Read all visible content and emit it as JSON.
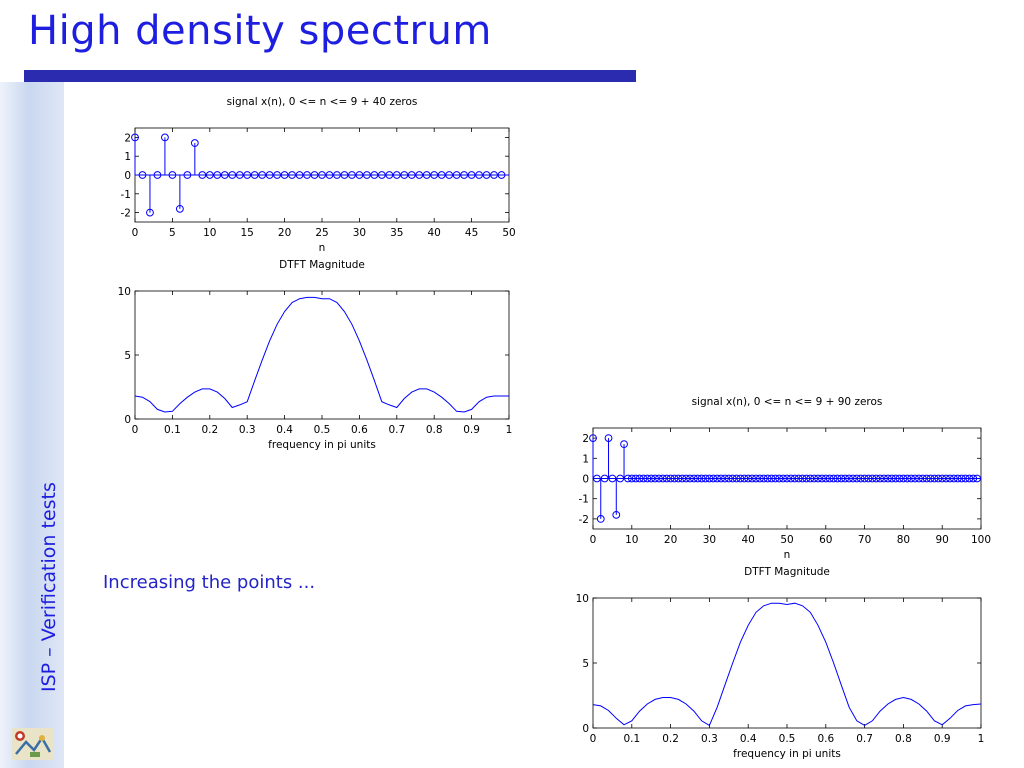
{
  "slide": {
    "title": "High density spectrum",
    "side_label": "ISP – Verification tests",
    "caption": "Increasing the points ...",
    "colors": {
      "title": "#1e1ee0",
      "rule": "#2b2bb0",
      "stem": "#0000ff",
      "sidebar": "#c9d7ef"
    }
  },
  "chart_data": [
    {
      "type": "stem",
      "title": "signal x(n), 0 <= n <= 9 + 40 zeros",
      "xlabel": "n",
      "ylabel": "",
      "xlim": [
        0,
        50
      ],
      "ylim": [
        -2.5,
        2.5
      ],
      "xticks": [
        0,
        5,
        10,
        15,
        20,
        25,
        30,
        35,
        40,
        45,
        50
      ],
      "yticks": [
        2,
        1,
        0,
        -1,
        -2
      ],
      "x": [
        0,
        1,
        2,
        3,
        4,
        5,
        6,
        7,
        8,
        9,
        10,
        11,
        12,
        13,
        14,
        15,
        16,
        17,
        18,
        19,
        20,
        21,
        22,
        23,
        24,
        25,
        26,
        27,
        28,
        29,
        30,
        31,
        32,
        33,
        34,
        35,
        36,
        37,
        38,
        39,
        40,
        41,
        42,
        43,
        44,
        45,
        46,
        47,
        48,
        49
      ],
      "y": [
        2,
        0,
        -2,
        0,
        2,
        0,
        -1.8,
        0,
        1.7,
        0,
        0,
        0,
        0,
        0,
        0,
        0,
        0,
        0,
        0,
        0,
        0,
        0,
        0,
        0,
        0,
        0,
        0,
        0,
        0,
        0,
        0,
        0,
        0,
        0,
        0,
        0,
        0,
        0,
        0,
        0,
        0,
        0,
        0,
        0,
        0,
        0,
        0,
        0,
        0,
        0
      ],
      "grid": false
    },
    {
      "type": "line",
      "title": "DTFT Magnitude",
      "xlabel": "frequency in pi units",
      "ylabel": "",
      "xlim": [
        0,
        1
      ],
      "ylim": [
        0,
        10
      ],
      "xticks": [
        0,
        0.1,
        0.2,
        0.3,
        0.4,
        0.5,
        0.6,
        0.7,
        0.8,
        0.9,
        1
      ],
      "yticks": [
        10,
        5,
        0
      ],
      "x": [
        0,
        0.02,
        0.04,
        0.06,
        0.08,
        0.1,
        0.12,
        0.14,
        0.16,
        0.18,
        0.2,
        0.22,
        0.24,
        0.26,
        0.28,
        0.3,
        0.32,
        0.34,
        0.36,
        0.38,
        0.4,
        0.42,
        0.44,
        0.46,
        0.48,
        0.5,
        0.52,
        0.54,
        0.56,
        0.58,
        0.6,
        0.62,
        0.64,
        0.66,
        0.68,
        0.7,
        0.72,
        0.74,
        0.76,
        0.78,
        0.8,
        0.82,
        0.84,
        0.86,
        0.88,
        0.9,
        0.92,
        0.94,
        0.96,
        0.98,
        1
      ],
      "y": [
        1.8,
        1.7,
        1.35,
        0.75,
        0.55,
        0.6,
        1.2,
        1.7,
        2.1,
        2.35,
        2.35,
        2.1,
        1.6,
        0.9,
        1.1,
        1.35,
        3.0,
        4.6,
        6.1,
        7.4,
        8.4,
        9.1,
        9.4,
        9.5,
        9.5,
        9.4,
        9.4,
        9.1,
        8.4,
        7.4,
        6.1,
        4.6,
        3.0,
        1.35,
        1.1,
        0.9,
        1.6,
        2.1,
        2.35,
        2.35,
        2.1,
        1.7,
        1.2,
        0.6,
        0.55,
        0.75,
        1.35,
        1.7,
        1.8,
        1.8,
        1.8
      ],
      "grid": false
    },
    {
      "type": "stem",
      "title": "signal x(n), 0 <= n <= 9 + 90 zeros",
      "xlabel": "n",
      "ylabel": "",
      "xlim": [
        0,
        100
      ],
      "ylim": [
        -2.5,
        2.5
      ],
      "xticks": [
        0,
        10,
        20,
        30,
        40,
        50,
        60,
        70,
        80,
        90,
        100
      ],
      "yticks": [
        2,
        1,
        0,
        -1,
        -2
      ],
      "x": [
        0,
        1,
        2,
        3,
        4,
        5,
        6,
        7,
        8,
        9,
        10,
        11,
        12,
        13,
        14,
        15,
        16,
        17,
        18,
        19,
        20,
        21,
        22,
        23,
        24,
        25,
        26,
        27,
        28,
        29,
        30,
        31,
        32,
        33,
        34,
        35,
        36,
        37,
        38,
        39,
        40,
        41,
        42,
        43,
        44,
        45,
        46,
        47,
        48,
        49,
        50,
        51,
        52,
        53,
        54,
        55,
        56,
        57,
        58,
        59,
        60,
        61,
        62,
        63,
        64,
        65,
        66,
        67,
        68,
        69,
        70,
        71,
        72,
        73,
        74,
        75,
        76,
        77,
        78,
        79,
        80,
        81,
        82,
        83,
        84,
        85,
        86,
        87,
        88,
        89,
        90,
        91,
        92,
        93,
        94,
        95,
        96,
        97,
        98,
        99
      ],
      "y": [
        2,
        0,
        -2,
        0,
        2,
        0,
        -1.8,
        0,
        1.7,
        0,
        0,
        0,
        0,
        0,
        0,
        0,
        0,
        0,
        0,
        0,
        0,
        0,
        0,
        0,
        0,
        0,
        0,
        0,
        0,
        0,
        0,
        0,
        0,
        0,
        0,
        0,
        0,
        0,
        0,
        0,
        0,
        0,
        0,
        0,
        0,
        0,
        0,
        0,
        0,
        0,
        0,
        0,
        0,
        0,
        0,
        0,
        0,
        0,
        0,
        0,
        0,
        0,
        0,
        0,
        0,
        0,
        0,
        0,
        0,
        0,
        0,
        0,
        0,
        0,
        0,
        0,
        0,
        0,
        0,
        0,
        0,
        0,
        0,
        0,
        0,
        0,
        0,
        0,
        0,
        0,
        0,
        0,
        0,
        0,
        0,
        0,
        0,
        0,
        0,
        0
      ],
      "grid": false
    },
    {
      "type": "line",
      "title": "DTFT Magnitude",
      "xlabel": "frequency in pi units",
      "ylabel": "",
      "xlim": [
        0,
        1
      ],
      "ylim": [
        0,
        10
      ],
      "xticks": [
        0,
        0.1,
        0.2,
        0.3,
        0.4,
        0.5,
        0.6,
        0.7,
        0.8,
        0.9,
        1
      ],
      "yticks": [
        10,
        5,
        0
      ],
      "x": [
        0,
        0.02,
        0.04,
        0.06,
        0.08,
        0.1,
        0.12,
        0.14,
        0.16,
        0.18,
        0.2,
        0.22,
        0.24,
        0.26,
        0.28,
        0.3,
        0.32,
        0.34,
        0.36,
        0.38,
        0.4,
        0.42,
        0.44,
        0.46,
        0.48,
        0.5,
        0.52,
        0.54,
        0.56,
        0.58,
        0.6,
        0.62,
        0.64,
        0.66,
        0.68,
        0.7,
        0.72,
        0.74,
        0.76,
        0.78,
        0.8,
        0.82,
        0.84,
        0.86,
        0.88,
        0.9,
        0.92,
        0.94,
        0.96,
        0.98,
        1
      ],
      "y": [
        1.8,
        1.7,
        1.35,
        0.75,
        0.25,
        0.55,
        1.3,
        1.85,
        2.2,
        2.35,
        2.35,
        2.2,
        1.85,
        1.3,
        0.55,
        0.2,
        1.6,
        3.3,
        5.0,
        6.6,
        7.9,
        8.9,
        9.4,
        9.6,
        9.6,
        9.5,
        9.6,
        9.4,
        8.9,
        7.9,
        6.6,
        5.0,
        3.3,
        1.6,
        0.55,
        0.2,
        0.55,
        1.3,
        1.85,
        2.2,
        2.35,
        2.2,
        1.85,
        1.3,
        0.55,
        0.25,
        0.75,
        1.35,
        1.7,
        1.8,
        1.85
      ],
      "grid": false
    }
  ]
}
